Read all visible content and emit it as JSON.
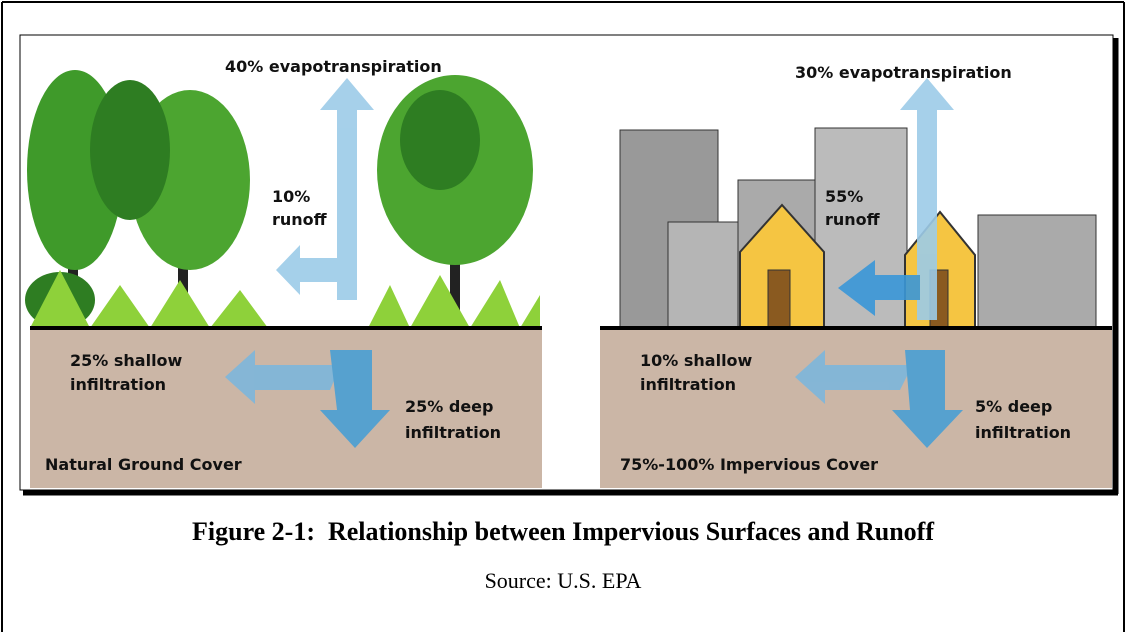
{
  "left_panel": {
    "evapotranspiration": "40% evapotranspiration",
    "runoff": [
      "10%",
      "runoff"
    ],
    "shallow_infiltration": [
      "25% shallow",
      "infiltration"
    ],
    "deep_infiltration": [
      "25% deep",
      "infiltration"
    ],
    "label": "Natural Ground Cover"
  },
  "right_panel": {
    "evapotranspiration": "30% evapotranspiration",
    "runoff": [
      "55%",
      "runoff"
    ],
    "shallow_infiltration": [
      "10% shallow",
      "infiltration"
    ],
    "deep_infiltration": [
      "5% deep",
      "infiltration"
    ],
    "label": "75%-100% Impervious Cover"
  },
  "caption": {
    "title": "Figure 2-1:  Relationship between Impervious Surfaces and Runoff",
    "source": "Source: U.S. EPA"
  }
}
